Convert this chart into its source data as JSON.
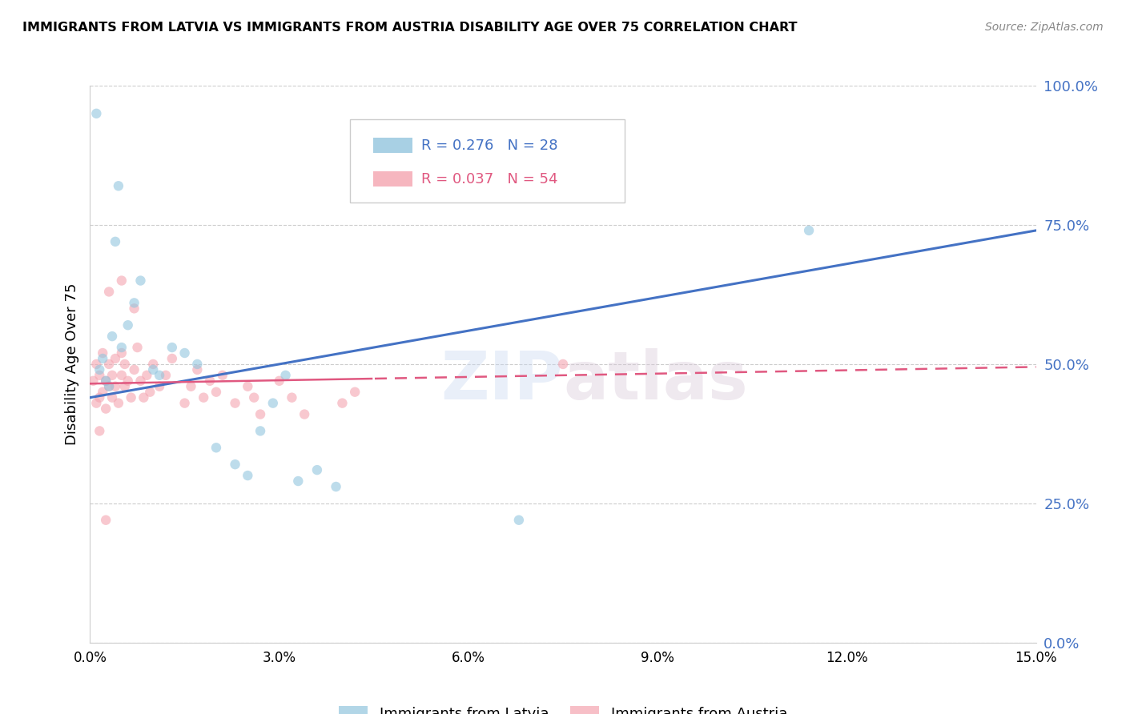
{
  "title": "IMMIGRANTS FROM LATVIA VS IMMIGRANTS FROM AUSTRIA DISABILITY AGE OVER 75 CORRELATION CHART",
  "source": "Source: ZipAtlas.com",
  "ylabel": "Disability Age Over 75",
  "xmin": 0.0,
  "xmax": 15.0,
  "ymin": 0.0,
  "ymax": 100.0,
  "yticks": [
    0,
    25,
    50,
    75,
    100
  ],
  "xticks": [
    0,
    3,
    6,
    9,
    12,
    15
  ],
  "latvia_R": 0.276,
  "latvia_N": 28,
  "austria_R": 0.037,
  "austria_N": 54,
  "latvia_color": "#92c5de",
  "austria_color": "#f4a4b0",
  "latvia_line_color": "#4472c4",
  "austria_line_color": "#e05880",
  "background_color": "#ffffff",
  "legend_labels": [
    "Immigrants from Latvia",
    "Immigrants from Austria"
  ],
  "latvia_line_x0": 0.0,
  "latvia_line_y0": 44.0,
  "latvia_line_x1": 15.0,
  "latvia_line_y1": 74.0,
  "austria_line_x0": 0.0,
  "austria_line_y0": 46.5,
  "austria_line_x1": 15.0,
  "austria_line_y1": 49.5,
  "austria_dash_start_x": 4.5,
  "latvia_scatter_x": [
    0.1,
    0.15,
    0.2,
    0.25,
    0.3,
    0.35,
    0.4,
    0.5,
    0.6,
    0.7,
    0.8,
    1.0,
    1.1,
    1.3,
    1.5,
    1.7,
    2.0,
    2.3,
    2.5,
    2.7,
    2.9,
    3.1,
    3.3,
    3.6,
    3.9,
    6.8,
    11.4,
    0.45
  ],
  "latvia_scatter_y": [
    95.0,
    49.0,
    51.0,
    47.0,
    46.0,
    55.0,
    72.0,
    53.0,
    57.0,
    61.0,
    65.0,
    49.0,
    48.0,
    53.0,
    52.0,
    50.0,
    35.0,
    32.0,
    30.0,
    38.0,
    43.0,
    48.0,
    29.0,
    31.0,
    28.0,
    22.0,
    74.0,
    82.0
  ],
  "austria_scatter_x": [
    0.05,
    0.1,
    0.1,
    0.15,
    0.15,
    0.2,
    0.2,
    0.25,
    0.25,
    0.3,
    0.3,
    0.35,
    0.35,
    0.4,
    0.4,
    0.45,
    0.5,
    0.5,
    0.55,
    0.55,
    0.6,
    0.65,
    0.7,
    0.75,
    0.8,
    0.85,
    0.9,
    0.95,
    1.0,
    1.1,
    1.2,
    1.3,
    1.5,
    1.6,
    1.7,
    1.8,
    1.9,
    2.0,
    2.1,
    2.3,
    2.5,
    2.6,
    2.7,
    3.0,
    3.2,
    3.4,
    4.0,
    4.2,
    0.3,
    0.5,
    0.7,
    7.5,
    0.15,
    0.25
  ],
  "austria_scatter_y": [
    47.0,
    43.0,
    50.0,
    44.0,
    48.0,
    45.0,
    52.0,
    42.0,
    47.0,
    46.0,
    50.0,
    44.0,
    48.0,
    46.0,
    51.0,
    43.0,
    48.0,
    52.0,
    46.0,
    50.0,
    47.0,
    44.0,
    49.0,
    53.0,
    47.0,
    44.0,
    48.0,
    45.0,
    50.0,
    46.0,
    48.0,
    51.0,
    43.0,
    46.0,
    49.0,
    44.0,
    47.0,
    45.0,
    48.0,
    43.0,
    46.0,
    44.0,
    41.0,
    47.0,
    44.0,
    41.0,
    43.0,
    45.0,
    63.0,
    65.0,
    60.0,
    50.0,
    38.0,
    22.0
  ]
}
